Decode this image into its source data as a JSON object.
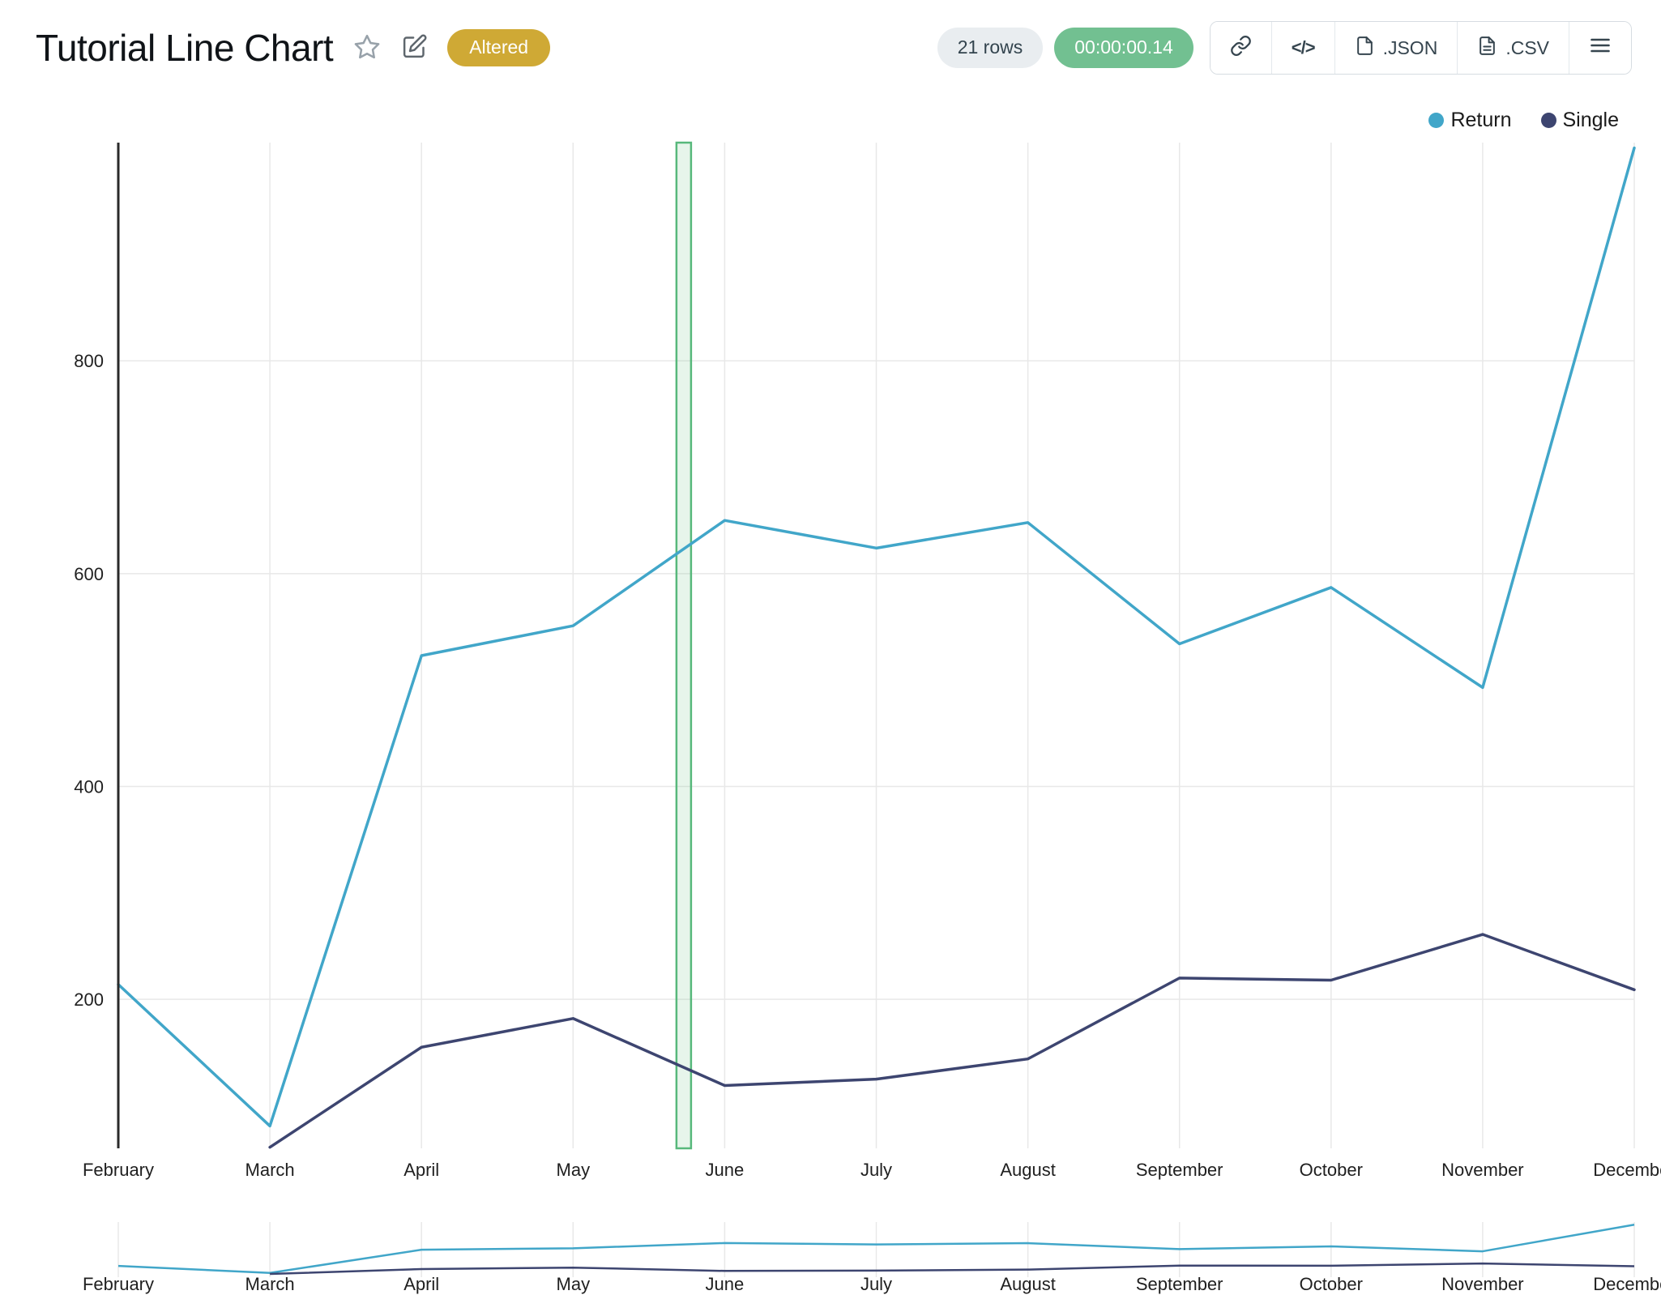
{
  "header": {
    "title": "Tutorial Line Chart",
    "status_badge": "Altered",
    "badge_color": "#cfa935"
  },
  "toolbar": {
    "rows": "21 rows",
    "runtime": "00:00:00.14",
    "runtime_color": "#72c091",
    "embed_label": "</>",
    "json_label": ".JSON",
    "csv_label": ".CSV"
  },
  "chart_data": {
    "type": "line",
    "x": [
      "February",
      "March",
      "April",
      "May",
      "June",
      "July",
      "August",
      "September",
      "October",
      "November",
      "December"
    ],
    "series": [
      {
        "name": "Return",
        "color": "#41a6c9",
        "values": [
          214,
          81,
          523,
          551,
          650,
          624,
          648,
          534,
          587,
          493,
          1000
        ]
      },
      {
        "name": "Single",
        "color": "#3d4570",
        "values": [
          null,
          61,
          155,
          182,
          119,
          125,
          144,
          220,
          218,
          261,
          209
        ]
      }
    ],
    "yticks": [
      200,
      400,
      600,
      800
    ],
    "ylim": [
      60,
      1005
    ],
    "grid": true,
    "legend_position": "top-right",
    "selection_band": {
      "x_fraction": 0.373
    },
    "has_range_selector": true
  }
}
